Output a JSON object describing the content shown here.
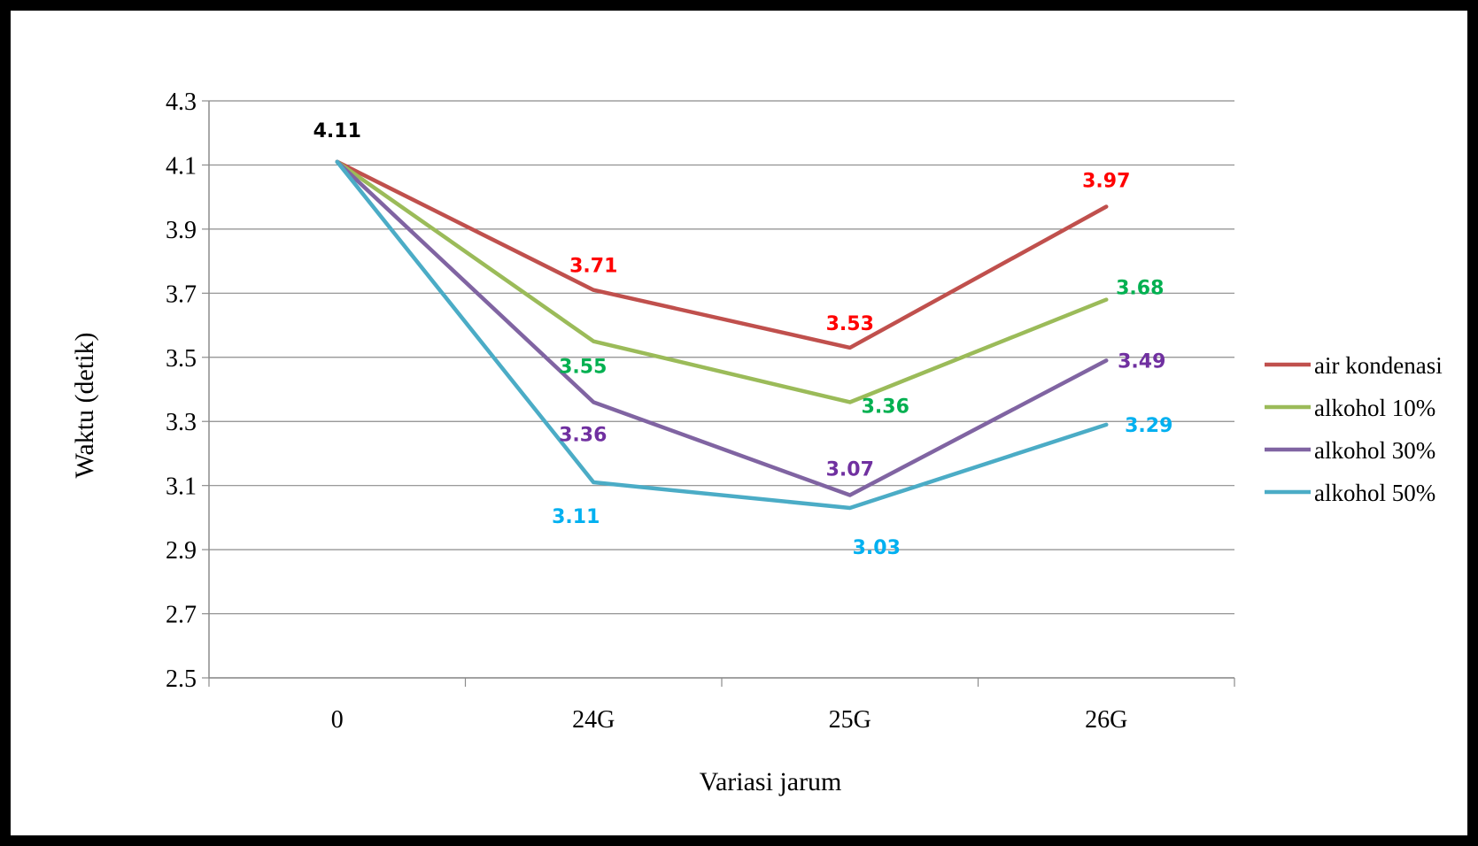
{
  "chart_data": {
    "type": "line",
    "title": "",
    "xlabel": "Variasi jarum",
    "ylabel": "Waktu (detik)",
    "categories": [
      "0",
      "24G",
      "25G",
      "26G"
    ],
    "ylim": [
      2.5,
      4.3
    ],
    "yticks": [
      "2.5",
      "2.7",
      "2.9",
      "3.1",
      "3.3",
      "3.5",
      "3.7",
      "3.9",
      "4.1",
      "4.3"
    ],
    "grid": true,
    "legend_position": "right",
    "series": [
      {
        "name": "air kondenasi",
        "color": "#c0504d",
        "label_color": "#ff0000",
        "values": [
          4.11,
          3.71,
          3.53,
          3.97
        ],
        "labels": [
          "",
          "3.71",
          "3.53",
          "3.97"
        ]
      },
      {
        "name": "alkohol 10%",
        "color": "#9bbb59",
        "label_color": "#00b050",
        "values": [
          4.11,
          3.55,
          3.36,
          3.68
        ],
        "labels": [
          "",
          "3.55",
          "3.36",
          "3.68"
        ]
      },
      {
        "name": "alkohol 30%",
        "color": "#8064a2",
        "label_color": "#7030a0",
        "values": [
          4.11,
          3.36,
          3.07,
          3.49
        ],
        "labels": [
          "",
          "3.36",
          "3.07",
          "3.49"
        ]
      },
      {
        "name": "alkohol 50%",
        "color": "#4bacc6",
        "label_color": "#00b0f0",
        "values": [
          4.11,
          3.11,
          3.03,
          3.29
        ],
        "labels": [
          "",
          "3.11",
          "3.03",
          "3.29"
        ]
      }
    ],
    "annotations": [
      {
        "text": "4.11",
        "category": "0",
        "value": 4.11,
        "color": "#000000"
      }
    ]
  }
}
